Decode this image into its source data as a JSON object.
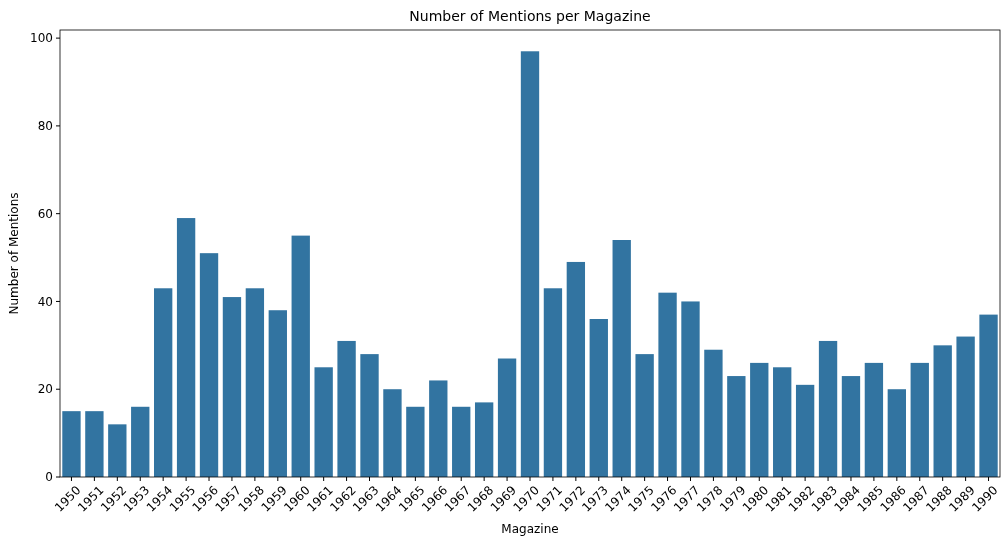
{
  "chart_data": {
    "type": "bar",
    "title": "Number of Mentions per Magazine",
    "xlabel": "Magazine",
    "ylabel": "Number of Mentions",
    "categories": [
      "1950",
      "1951",
      "1952",
      "1953",
      "1954",
      "1955",
      "1956",
      "1957",
      "1958",
      "1959",
      "1960",
      "1961",
      "1962",
      "1963",
      "1964",
      "1965",
      "1966",
      "1967",
      "1968",
      "1969",
      "1970",
      "1971",
      "1972",
      "1973",
      "1974",
      "1975",
      "1976",
      "1977",
      "1978",
      "1979",
      "1980",
      "1981",
      "1982",
      "1983",
      "1984",
      "1985",
      "1986",
      "1987",
      "1988",
      "1989",
      "1990"
    ],
    "values": [
      15,
      15,
      12,
      16,
      43,
      59,
      51,
      41,
      43,
      38,
      55,
      25,
      31,
      28,
      20,
      16,
      22,
      16,
      17,
      27,
      97,
      43,
      49,
      36,
      54,
      28,
      42,
      40,
      29,
      23,
      26,
      25,
      21,
      31,
      23,
      26,
      20,
      26,
      30,
      32,
      37
    ],
    "color": "#3274a1",
    "ylim": [
      0,
      101.85
    ],
    "yticks": [
      0,
      20,
      40,
      60,
      80,
      100
    ],
    "grid": false
  }
}
